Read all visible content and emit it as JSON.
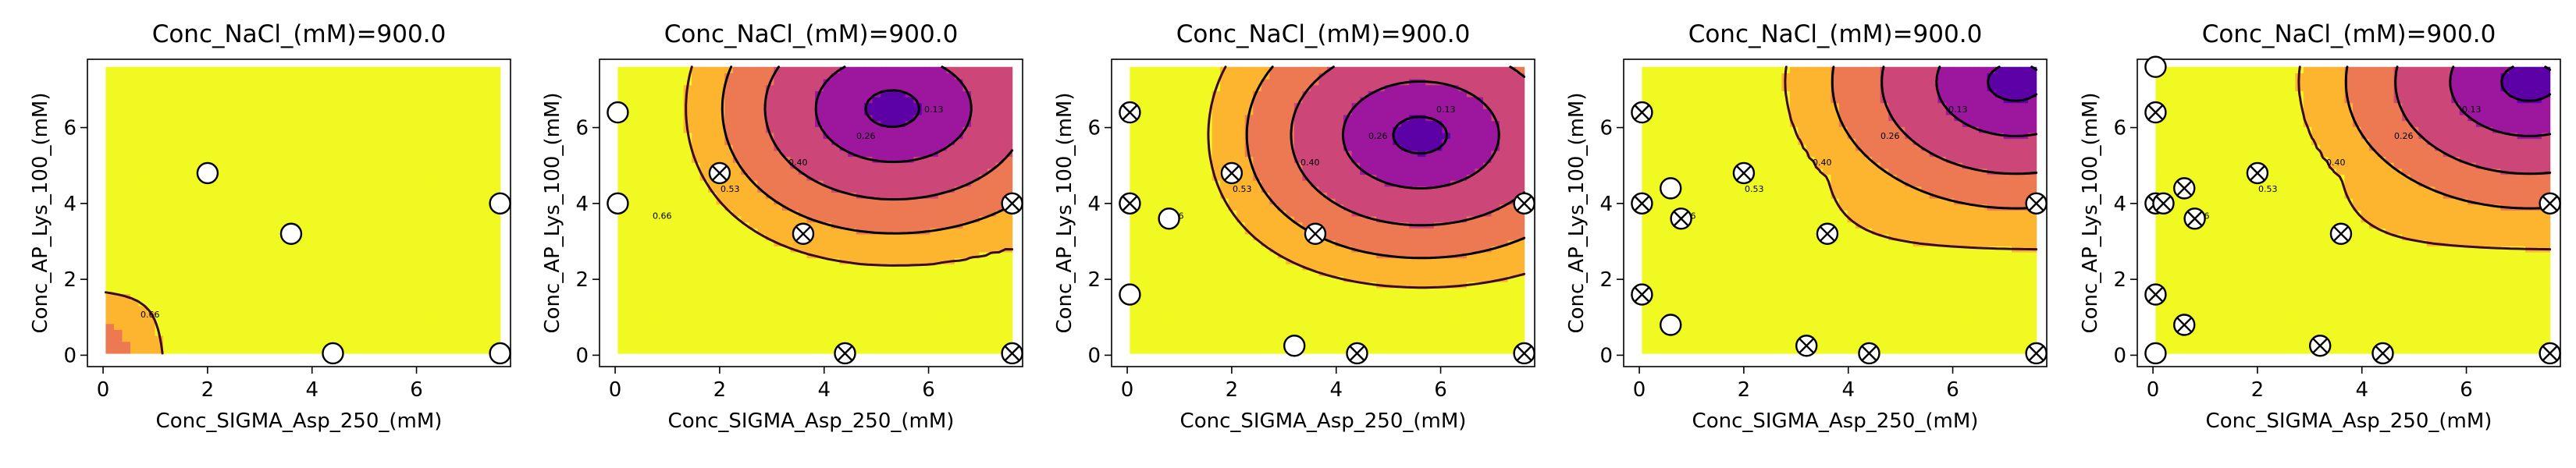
{
  "chart_data": [
    {
      "type": "contour",
      "title": "Conc_NaCl_(mM)=900.0",
      "xlabel": "Conc_SIGMA_Asp_250_(mM)",
      "ylabel": "Conc_AP_Lys_100_(mM)",
      "xlim": [
        -0.3,
        7.8
      ],
      "ylim": [
        -0.3,
        7.8
      ],
      "xticks": [
        0,
        2,
        4,
        6
      ],
      "yticks": [
        0,
        2,
        4,
        6
      ],
      "contour_levels": [
        "0.66"
      ],
      "points": [
        {
          "x": 2.0,
          "y": 4.8,
          "marker": "open"
        },
        {
          "x": 3.6,
          "y": 3.2,
          "marker": "open"
        },
        {
          "x": 4.4,
          "y": 0.05,
          "marker": "open"
        },
        {
          "x": 7.6,
          "y": 4.0,
          "marker": "open"
        },
        {
          "x": 7.6,
          "y": 0.05,
          "marker": "open"
        }
      ]
    },
    {
      "type": "contour",
      "title": "Conc_NaCl_(mM)=900.0",
      "xlabel": "Conc_SIGMA_Asp_250_(mM)",
      "ylabel": "Conc_AP_Lys_100_(mM)",
      "xlim": [
        -0.3,
        7.8
      ],
      "ylim": [
        -0.3,
        7.8
      ],
      "xticks": [
        0,
        2,
        4,
        6
      ],
      "yticks": [
        0,
        2,
        4,
        6
      ],
      "contour_levels": [
        "0.66",
        "0.53",
        "0.40",
        "0.26",
        "0.13"
      ],
      "points": [
        {
          "x": 0.05,
          "y": 6.4,
          "marker": "open"
        },
        {
          "x": 0.05,
          "y": 4.0,
          "marker": "open"
        },
        {
          "x": 2.0,
          "y": 4.8,
          "marker": "crossed"
        },
        {
          "x": 3.6,
          "y": 3.2,
          "marker": "crossed"
        },
        {
          "x": 4.4,
          "y": 0.05,
          "marker": "crossed"
        },
        {
          "x": 7.6,
          "y": 4.0,
          "marker": "crossed"
        },
        {
          "x": 7.6,
          "y": 0.05,
          "marker": "crossed"
        }
      ]
    },
    {
      "type": "contour",
      "title": "Conc_NaCl_(mM)=900.0",
      "xlabel": "Conc_SIGMA_Asp_250_(mM)",
      "ylabel": "Conc_AP_Lys_100_(mM)",
      "xlim": [
        -0.3,
        7.8
      ],
      "ylim": [
        -0.3,
        7.8
      ],
      "xticks": [
        0,
        2,
        4,
        6
      ],
      "yticks": [
        0,
        2,
        4,
        6
      ],
      "contour_levels": [
        "0.66",
        "0.53",
        "0.40",
        "0.26",
        "0.13"
      ],
      "points": [
        {
          "x": 0.05,
          "y": 6.4,
          "marker": "crossed"
        },
        {
          "x": 0.05,
          "y": 4.0,
          "marker": "crossed"
        },
        {
          "x": 0.05,
          "y": 1.6,
          "marker": "open"
        },
        {
          "x": 0.8,
          "y": 3.6,
          "marker": "open"
        },
        {
          "x": 2.0,
          "y": 4.8,
          "marker": "crossed"
        },
        {
          "x": 3.6,
          "y": 3.2,
          "marker": "crossed"
        },
        {
          "x": 3.2,
          "y": 0.25,
          "marker": "open"
        },
        {
          "x": 4.4,
          "y": 0.05,
          "marker": "crossed"
        },
        {
          "x": 7.6,
          "y": 4.0,
          "marker": "crossed"
        },
        {
          "x": 7.6,
          "y": 0.05,
          "marker": "crossed"
        }
      ]
    },
    {
      "type": "contour",
      "title": "Conc_NaCl_(mM)=900.0",
      "xlabel": "Conc_SIGMA_Asp_250_(mM)",
      "ylabel": "Conc_AP_Lys_100_(mM)",
      "xlim": [
        -0.3,
        7.8
      ],
      "ylim": [
        -0.3,
        7.8
      ],
      "xticks": [
        0,
        2,
        4,
        6
      ],
      "yticks": [
        0,
        2,
        4,
        6
      ],
      "contour_levels": [
        "0.66",
        "0.53",
        "0.40",
        "0.26",
        "0.13"
      ],
      "points": [
        {
          "x": 0.05,
          "y": 6.4,
          "marker": "crossed"
        },
        {
          "x": 0.05,
          "y": 4.0,
          "marker": "crossed"
        },
        {
          "x": 0.05,
          "y": 1.6,
          "marker": "crossed"
        },
        {
          "x": 0.6,
          "y": 4.4,
          "marker": "open"
        },
        {
          "x": 0.8,
          "y": 3.6,
          "marker": "crossed"
        },
        {
          "x": 0.6,
          "y": 0.8,
          "marker": "open"
        },
        {
          "x": 2.0,
          "y": 4.8,
          "marker": "crossed"
        },
        {
          "x": 3.6,
          "y": 3.2,
          "marker": "crossed"
        },
        {
          "x": 3.2,
          "y": 0.25,
          "marker": "crossed"
        },
        {
          "x": 4.4,
          "y": 0.05,
          "marker": "crossed"
        },
        {
          "x": 7.6,
          "y": 4.0,
          "marker": "crossed"
        },
        {
          "x": 7.6,
          "y": 0.05,
          "marker": "crossed"
        }
      ]
    },
    {
      "type": "contour",
      "title": "Conc_NaCl_(mM)=900.0",
      "xlabel": "Conc_SIGMA_Asp_250_(mM)",
      "ylabel": "Conc_AP_Lys_100_(mM)",
      "xlim": [
        -0.3,
        7.8
      ],
      "ylim": [
        -0.3,
        7.8
      ],
      "xticks": [
        0,
        2,
        4,
        6
      ],
      "yticks": [
        0,
        2,
        4,
        6
      ],
      "contour_levels": [
        "0.66",
        "0.53",
        "0.40",
        "0.26",
        "0.13"
      ],
      "points": [
        {
          "x": 0.05,
          "y": 7.6,
          "marker": "open"
        },
        {
          "x": 0.05,
          "y": 6.4,
          "marker": "crossed"
        },
        {
          "x": 0.05,
          "y": 4.0,
          "marker": "crossed"
        },
        {
          "x": 0.2,
          "y": 4.0,
          "marker": "crossed"
        },
        {
          "x": 0.05,
          "y": 1.6,
          "marker": "crossed"
        },
        {
          "x": 0.05,
          "y": 0.05,
          "marker": "open"
        },
        {
          "x": 0.6,
          "y": 4.4,
          "marker": "crossed"
        },
        {
          "x": 0.8,
          "y": 3.6,
          "marker": "crossed"
        },
        {
          "x": 0.6,
          "y": 0.8,
          "marker": "crossed"
        },
        {
          "x": 2.0,
          "y": 4.8,
          "marker": "crossed"
        },
        {
          "x": 3.6,
          "y": 3.2,
          "marker": "crossed"
        },
        {
          "x": 3.2,
          "y": 0.25,
          "marker": "crossed"
        },
        {
          "x": 4.4,
          "y": 0.05,
          "marker": "crossed"
        },
        {
          "x": 7.6,
          "y": 4.0,
          "marker": "crossed"
        },
        {
          "x": 7.6,
          "y": 0.05,
          "marker": "crossed"
        }
      ]
    }
  ],
  "colors": {
    "level_fill": [
      "#f0f921",
      "#fdb42f",
      "#ed7953",
      "#cc4778",
      "#9c179e",
      "#5c01a6"
    ],
    "line": "#000000",
    "marker_fill": "#ffffff"
  }
}
